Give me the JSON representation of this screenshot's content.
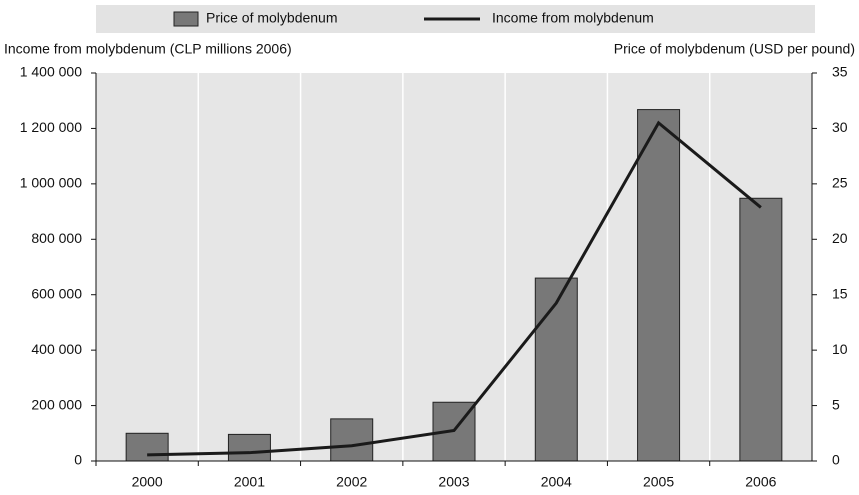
{
  "chart_data": {
    "type": "combo",
    "y_label": "Income from molybdenum (CLP millions 2006)",
    "y2_label": "Price of molybdenum (USD per pound)",
    "categories": [
      "2000",
      "2001",
      "2002",
      "2003",
      "2004",
      "2005",
      "2006"
    ],
    "series": [
      {
        "name": "Price of molybdenum",
        "type": "bar",
        "axis": "y2",
        "color": "#787878",
        "values": [
          2.5,
          2.4,
          3.8,
          5.3,
          16.5,
          31.7,
          23.7
        ]
      },
      {
        "name": "Income from molybdenum",
        "type": "line",
        "color": "#1a1a1a",
        "values": [
          22000,
          30000,
          55000,
          110000,
          570000,
          1220000,
          915000
        ]
      }
    ],
    "ylim": [
      0,
      1400000
    ],
    "yticks": [
      0,
      {
        "value": 200000,
        "label": "200 000"
      },
      {
        "value": 400000,
        "label": "400 000"
      },
      {
        "value": 600000,
        "label": "600 000"
      },
      {
        "value": 800000,
        "label": "800 000"
      },
      {
        "value": 1000000,
        "label": "1 000 000"
      },
      {
        "value": 1200000,
        "label": "1 200 000"
      },
      {
        "value": 1400000,
        "label": "1 400 000"
      }
    ],
    "y2lim": [
      0,
      35
    ],
    "y2ticks": [
      0,
      5,
      10,
      15,
      20,
      25,
      30,
      35
    ],
    "legend": "top"
  }
}
